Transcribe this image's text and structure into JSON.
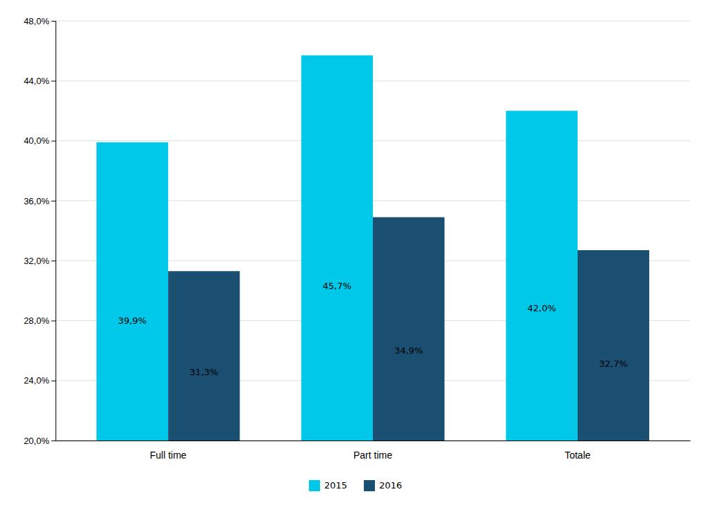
{
  "chart_data": {
    "type": "bar",
    "categories": [
      "Full time",
      "Part time",
      "Totale"
    ],
    "series": [
      {
        "name": "2015",
        "color": "#00C8E8",
        "values": [
          39.9,
          45.7,
          42.0
        ],
        "value_labels": [
          "39,9%",
          "45,7%",
          "42,0%"
        ]
      },
      {
        "name": "2016",
        "color": "#1B4F72",
        "values": [
          31.3,
          34.9,
          32.7
        ],
        "value_labels": [
          "31,3%",
          "34,9%",
          "32,7%"
        ]
      }
    ],
    "ylim": [
      20.0,
      48.0
    ],
    "yticks": [
      {
        "value": 20.0,
        "label": "20,0%"
      },
      {
        "value": 24.0,
        "label": "24,0%"
      },
      {
        "value": 28.0,
        "label": "28,0%"
      },
      {
        "value": 32.0,
        "label": "32,0%"
      },
      {
        "value": 36.0,
        "label": "36,0%"
      },
      {
        "value": 40.0,
        "label": "40,0%"
      },
      {
        "value": 44.0,
        "label": "44,0%"
      },
      {
        "value": 48.0,
        "label": "48,0%"
      }
    ],
    "grid": true,
    "data_labels": true,
    "legend": "bottom"
  }
}
